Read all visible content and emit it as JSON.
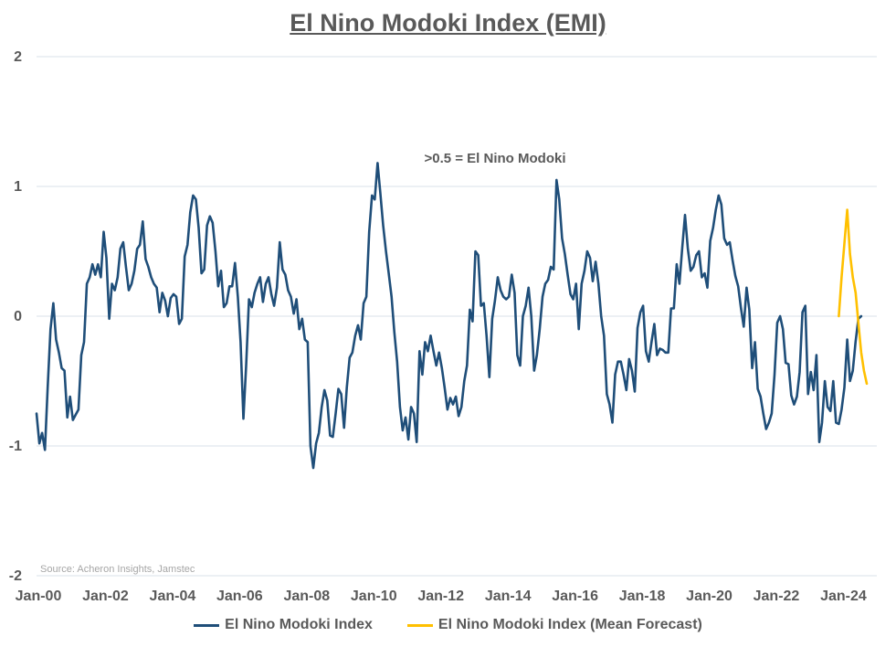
{
  "colors": {
    "series1": "#1f4e79",
    "series2": "#ffc000",
    "grid": "#d9e2ea",
    "text": "#595959"
  },
  "chart_data": {
    "type": "line",
    "title": "El Nino Modoki Index (EMI)",
    "annotation": ">0.5 = El Nino Modoki",
    "source": "Source: Acheron Insights, Jamstec",
    "ylim": [
      -2,
      2
    ],
    "yticks": [
      "2",
      "1",
      "0",
      "-1",
      "-2"
    ],
    "ytick_values": [
      2,
      1,
      0,
      -1,
      -2
    ],
    "xticks": [
      "Jan-00",
      "Jan-02",
      "Jan-04",
      "Jan-06",
      "Jan-08",
      "Jan-10",
      "Jan-12",
      "Jan-14",
      "Jan-16",
      "Jan-18",
      "Jan-20",
      "Jan-22",
      "Jan-24"
    ],
    "xlim_years": [
      2000,
      2025.05
    ],
    "grid": true,
    "legend_position": "bottom",
    "series": [
      {
        "name": "El Nino Modoki Index",
        "start": 2000.0,
        "step_months": 1,
        "values": [
          -0.75,
          -0.98,
          -0.9,
          -1.03,
          -0.55,
          -0.1,
          0.1,
          -0.18,
          -0.28,
          -0.4,
          -0.42,
          -0.78,
          -0.62,
          -0.8,
          -0.76,
          -0.72,
          -0.3,
          -0.2,
          0.25,
          0.3,
          0.4,
          0.32,
          0.4,
          0.3,
          0.65,
          0.45,
          -0.02,
          0.25,
          0.2,
          0.3,
          0.52,
          0.57,
          0.38,
          0.2,
          0.25,
          0.35,
          0.52,
          0.55,
          0.73,
          0.44,
          0.38,
          0.3,
          0.25,
          0.22,
          0.03,
          0.18,
          0.12,
          0.0,
          0.14,
          0.17,
          0.15,
          -0.06,
          -0.02,
          0.46,
          0.55,
          0.8,
          0.93,
          0.9,
          0.68,
          0.33,
          0.36,
          0.7,
          0.77,
          0.72,
          0.5,
          0.23,
          0.35,
          0.07,
          0.1,
          0.23,
          0.23,
          0.41,
          0.15,
          -0.2,
          -0.79,
          -0.38,
          0.13,
          0.07,
          0.18,
          0.25,
          0.3,
          0.11,
          0.25,
          0.3,
          0.17,
          0.08,
          0.22,
          0.57,
          0.36,
          0.32,
          0.2,
          0.15,
          0.02,
          0.13,
          -0.1,
          -0.02,
          -0.18,
          -0.2,
          -1.0,
          -1.17,
          -0.98,
          -0.9,
          -0.7,
          -0.57,
          -0.65,
          -0.92,
          -0.93,
          -0.75,
          -0.56,
          -0.6,
          -0.86,
          -0.55,
          -0.32,
          -0.28,
          -0.15,
          -0.07,
          -0.18,
          0.1,
          0.15,
          0.65,
          0.93,
          0.9,
          1.18,
          0.95,
          0.7,
          0.5,
          0.33,
          0.15,
          -0.12,
          -0.35,
          -0.7,
          -0.88,
          -0.78,
          -0.95,
          -0.7,
          -0.75,
          -0.97,
          -0.27,
          -0.45,
          -0.2,
          -0.27,
          -0.15,
          -0.27,
          -0.38,
          -0.28,
          -0.4,
          -0.55,
          -0.72,
          -0.63,
          -0.68,
          -0.62,
          -0.77,
          -0.7,
          -0.5,
          -0.38,
          0.05,
          -0.04,
          0.5,
          0.47,
          0.08,
          0.1,
          -0.15,
          -0.47,
          -0.02,
          0.12,
          0.3,
          0.2,
          0.15,
          0.13,
          0.15,
          0.32,
          0.18,
          -0.3,
          -0.38,
          0.0,
          0.08,
          0.22,
          0.0,
          -0.42,
          -0.3,
          -0.1,
          0.15,
          0.25,
          0.28,
          0.38,
          0.36,
          1.05,
          0.9,
          0.6,
          0.48,
          0.32,
          0.17,
          0.13,
          0.25,
          -0.1,
          0.25,
          0.35,
          0.5,
          0.45,
          0.27,
          0.42,
          0.25,
          0.0,
          -0.15,
          -0.6,
          -0.68,
          -0.82,
          -0.45,
          -0.35,
          -0.35,
          -0.45,
          -0.57,
          -0.33,
          -0.42,
          -0.58,
          -0.09,
          0.03,
          0.08,
          -0.27,
          -0.35,
          -0.2,
          -0.06,
          -0.3,
          -0.25,
          -0.26,
          -0.28,
          -0.28,
          0.06,
          0.06,
          0.4,
          0.25,
          0.53,
          0.78,
          0.52,
          0.35,
          0.38,
          0.47,
          0.5,
          0.3,
          0.33,
          0.22,
          0.58,
          0.68,
          0.82,
          0.93,
          0.86,
          0.6,
          0.55,
          0.57,
          0.43,
          0.31,
          0.23,
          0.06,
          -0.08,
          0.22,
          0.05,
          -0.4,
          -0.2,
          -0.56,
          -0.62,
          -0.75,
          -0.87,
          -0.82,
          -0.75,
          -0.45,
          -0.05,
          0.0,
          -0.1,
          -0.36,
          -0.37,
          -0.61,
          -0.68,
          -0.62,
          -0.43,
          0.03,
          0.08,
          -0.6,
          -0.43,
          -0.57,
          -0.3,
          -0.97,
          -0.82,
          -0.5,
          -0.7,
          -0.73,
          -0.5,
          -0.82,
          -0.83,
          -0.72,
          -0.55,
          -0.18,
          -0.5,
          -0.42,
          -0.2,
          -0.02,
          0.0
        ]
      },
      {
        "name": "El Nino Modoki Index (Mean Forecast)",
        "start": 2023.917,
        "step_months": 1,
        "values": [
          0.0,
          0.3,
          0.56,
          0.82,
          0.48,
          0.3,
          0.18,
          -0.05,
          -0.28,
          -0.42,
          -0.52
        ]
      }
    ]
  }
}
